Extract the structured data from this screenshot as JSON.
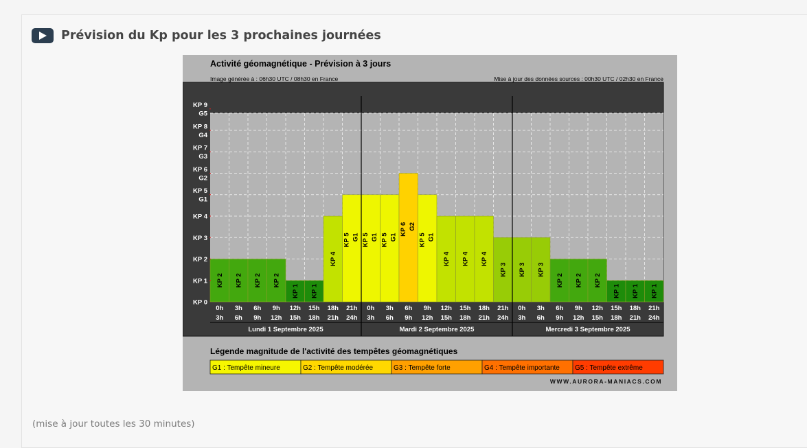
{
  "section": {
    "title": "Prévision du Kp pour les 3 prochaines journées",
    "icon": "play-icon",
    "footnote": "(mise à jour toutes les 30 minutes)"
  },
  "chart_data": {
    "type": "bar",
    "title": "Activité géomagnétique - Prévision à 3 jours",
    "generated": "Image générée à : 06h30 UTC / 08h30 en France",
    "source_update": "Mise à jour des données sources : 00h30 UTC / 02h30 en France",
    "y_ticks": [
      {
        "label": "KP 0",
        "value": 0
      },
      {
        "label": "KP 1",
        "value": 1
      },
      {
        "label": "KP 2",
        "value": 2
      },
      {
        "label": "KP 3",
        "value": 3
      },
      {
        "label": "KP 4",
        "value": 4
      },
      {
        "label": "G1",
        "value": 4.8
      },
      {
        "label": "KP 5",
        "value": 5.2
      },
      {
        "label": "G2",
        "value": 5.8
      },
      {
        "label": "KP 6",
        "value": 6.2
      },
      {
        "label": "G3",
        "value": 6.8
      },
      {
        "label": "KP 7",
        "value": 7.2
      },
      {
        "label": "G4",
        "value": 7.8
      },
      {
        "label": "KP 8",
        "value": 8.2
      },
      {
        "label": "G5",
        "value": 8.8
      },
      {
        "label": "KP 9",
        "value": 9.2
      }
    ],
    "ylim": [
      0,
      9.6
    ],
    "grid": true,
    "days": [
      {
        "label": "Lundi 1 Septembre 2025",
        "values": [
          2,
          2,
          2,
          2,
          1,
          1,
          4,
          5
        ]
      },
      {
        "label": "Mardi 2 Septembre 2025",
        "values": [
          5,
          5,
          6,
          5,
          4,
          4,
          4,
          3
        ]
      },
      {
        "label": "Mercredi 3 Septembre 2025",
        "values": [
          3,
          3,
          2,
          2,
          2,
          1,
          1,
          1
        ]
      }
    ],
    "slot_starts": [
      "0h",
      "3h",
      "6h",
      "9h",
      "12h",
      "15h",
      "18h",
      "21h"
    ],
    "slot_ends": [
      "3h",
      "6h",
      "9h",
      "12h",
      "15h",
      "18h",
      "21h",
      "24h"
    ],
    "bar_label_prefix": "KP",
    "g_labels": {
      "5": "G1",
      "6": "G2"
    },
    "level_colors": {
      "1": "#1e8c0a",
      "2": "#43a80e",
      "3": "#98cc06",
      "4": "#c2e200",
      "5": "#eef600",
      "6": "#ffd200"
    },
    "legend_title": "Légende magnitude de l'activité des tempêtes géomagnétiques",
    "legend": [
      {
        "label": "G1 : Tempête mineure",
        "color": "#f6f600"
      },
      {
        "label": "G2 : Tempête modérée",
        "color": "#ffd800"
      },
      {
        "label": "G3 : Tempête forte",
        "color": "#ffa000"
      },
      {
        "label": "G4 : Tempête importante",
        "color": "#ff7000"
      },
      {
        "label": "G5 : Tempête extrême",
        "color": "#ff3c00"
      }
    ],
    "credit": "WWW.AURORA-MANIACS.COM"
  }
}
